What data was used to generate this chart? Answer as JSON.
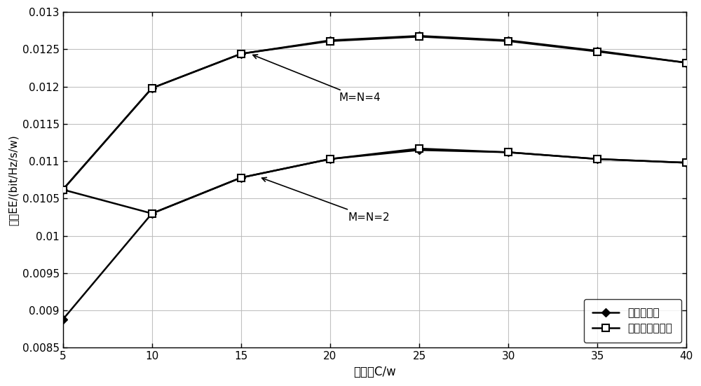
{
  "x": [
    5,
    10,
    15,
    20,
    25,
    30,
    35,
    40
  ],
  "line_exhaustive_N4": [
    0.01062,
    0.01198,
    0.01244,
    0.01262,
    0.01268,
    0.01262,
    0.01248,
    0.01232
  ],
  "line_proposed_N4": [
    0.01062,
    0.01198,
    0.01244,
    0.01261,
    0.01267,
    0.01261,
    0.01247,
    0.01232
  ],
  "line_exhaustive_N2": [
    0.00888,
    0.0103,
    0.01078,
    0.01103,
    0.01115,
    0.01112,
    0.01103,
    0.01098
  ],
  "line_proposed_N2": [
    0.01062,
    0.0103,
    0.01078,
    0.01103,
    0.01117,
    0.01112,
    0.01103,
    0.01098
  ],
  "xlim": [
    5,
    40
  ],
  "ylim": [
    0.0085,
    0.013
  ],
  "yticks": [
    0.0085,
    0.009,
    0.0095,
    0.01,
    0.0105,
    0.011,
    0.0115,
    0.012,
    0.0125,
    0.013
  ],
  "xticks": [
    5,
    10,
    15,
    20,
    25,
    30,
    35,
    40
  ],
  "xlabel": "总功率C/w",
  "ylabel": "能效EE/(bit/Hz/s/w)",
  "legend1": "穷举搜索法",
  "legend2": "本发明优化算法",
  "annotation_N4": "M=N=4",
  "annotation_N2": "M=N=2",
  "color": "#000000",
  "background": "#ffffff",
  "grid_color": "#bbbbbb",
  "linewidth": 1.8
}
